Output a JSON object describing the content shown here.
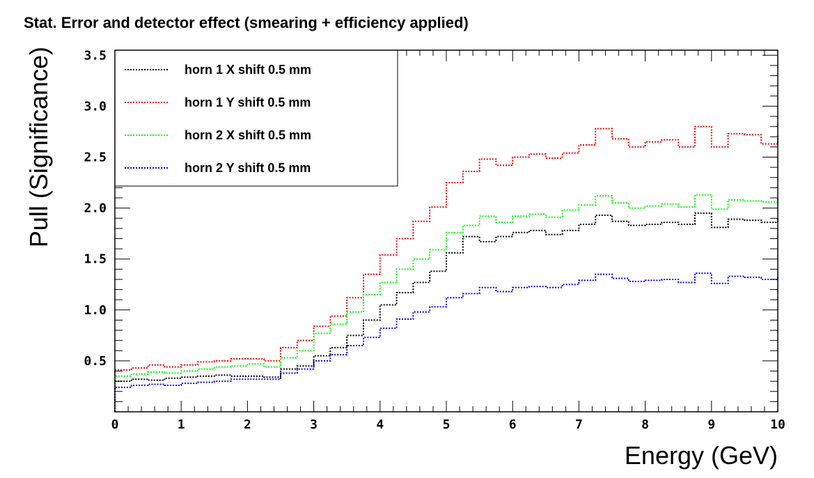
{
  "chart_data": {
    "type": "line",
    "title": "Stat. Error and detector effect (smearing + efficiency applied)",
    "xlabel": "Energy (GeV)",
    "ylabel": "Pull (Significance)",
    "xlim": [
      0,
      10
    ],
    "ylim": [
      0,
      3.55
    ],
    "xticks": [
      0,
      1,
      2,
      3,
      4,
      5,
      6,
      7,
      8,
      9,
      10
    ],
    "xtick_labels": [
      "0",
      "1",
      "2",
      "3",
      "4",
      "5",
      "6",
      "7",
      "8",
      "9",
      "10"
    ],
    "yticks": [
      0.5,
      1.0,
      1.5,
      2.0,
      2.5,
      3.0,
      3.5
    ],
    "ytick_labels": [
      "0.5",
      "1.0",
      "1.5",
      "2.0",
      "2.5",
      "3.0",
      "3.5"
    ],
    "line_style": "dotted-step",
    "legend_position": "top-left",
    "x_bin_edges": [
      0,
      0.25,
      0.5,
      0.75,
      1.0,
      1.25,
      1.5,
      1.75,
      2.0,
      2.25,
      2.5,
      2.75,
      3.0,
      3.25,
      3.5,
      3.75,
      4.0,
      4.25,
      4.5,
      4.75,
      5.0,
      5.25,
      5.5,
      5.75,
      6.0,
      6.25,
      6.5,
      6.75,
      7.0,
      7.25,
      7.5,
      7.75,
      8.0,
      8.25,
      8.5,
      8.75,
      9.0,
      9.25,
      9.5,
      9.75,
      10.0
    ],
    "series": [
      {
        "name": "horn 1 X shift 0.5 mm",
        "color": "#000000",
        "values": [
          0.3,
          0.32,
          0.31,
          0.33,
          0.34,
          0.35,
          0.36,
          0.35,
          0.35,
          0.34,
          0.42,
          0.45,
          0.55,
          0.63,
          0.75,
          0.9,
          1.05,
          1.17,
          1.27,
          1.38,
          1.56,
          1.72,
          1.67,
          1.72,
          1.76,
          1.78,
          1.74,
          1.78,
          1.84,
          1.93,
          1.87,
          1.83,
          1.84,
          1.86,
          1.84,
          1.95,
          1.81,
          1.89,
          1.88,
          1.86,
          1.9
        ]
      },
      {
        "name": "horn 1 Y shift 0.5 mm",
        "color": "#ff0000",
        "values": [
          0.41,
          0.43,
          0.46,
          0.44,
          0.46,
          0.49,
          0.5,
          0.52,
          0.52,
          0.5,
          0.63,
          0.7,
          0.84,
          0.94,
          1.12,
          1.35,
          1.54,
          1.7,
          1.87,
          2.01,
          2.25,
          2.36,
          2.48,
          2.42,
          2.5,
          2.53,
          2.49,
          2.54,
          2.62,
          2.78,
          2.68,
          2.6,
          2.65,
          2.67,
          2.6,
          2.8,
          2.6,
          2.73,
          2.72,
          2.63,
          2.71
        ]
      },
      {
        "name": "horn 2 X shift 0.5 mm",
        "color": "#00ff00",
        "values": [
          0.35,
          0.37,
          0.39,
          0.38,
          0.4,
          0.42,
          0.44,
          0.45,
          0.47,
          0.44,
          0.53,
          0.6,
          0.77,
          0.86,
          0.98,
          1.15,
          1.27,
          1.4,
          1.5,
          1.59,
          1.76,
          1.83,
          1.92,
          1.86,
          1.92,
          1.94,
          1.91,
          1.98,
          2.03,
          2.12,
          2.05,
          2.0,
          2.02,
          2.04,
          2.01,
          2.13,
          1.99,
          2.08,
          2.07,
          2.06,
          2.09
        ]
      },
      {
        "name": "horn 2 Y shift 0.5 mm",
        "color": "#0000ff",
        "values": [
          0.24,
          0.26,
          0.27,
          0.26,
          0.28,
          0.29,
          0.3,
          0.32,
          0.32,
          0.32,
          0.38,
          0.42,
          0.5,
          0.56,
          0.65,
          0.73,
          0.82,
          0.91,
          0.98,
          1.03,
          1.12,
          1.16,
          1.22,
          1.18,
          1.22,
          1.23,
          1.22,
          1.25,
          1.29,
          1.35,
          1.31,
          1.28,
          1.29,
          1.3,
          1.27,
          1.36,
          1.26,
          1.33,
          1.32,
          1.3,
          1.33
        ]
      }
    ]
  }
}
